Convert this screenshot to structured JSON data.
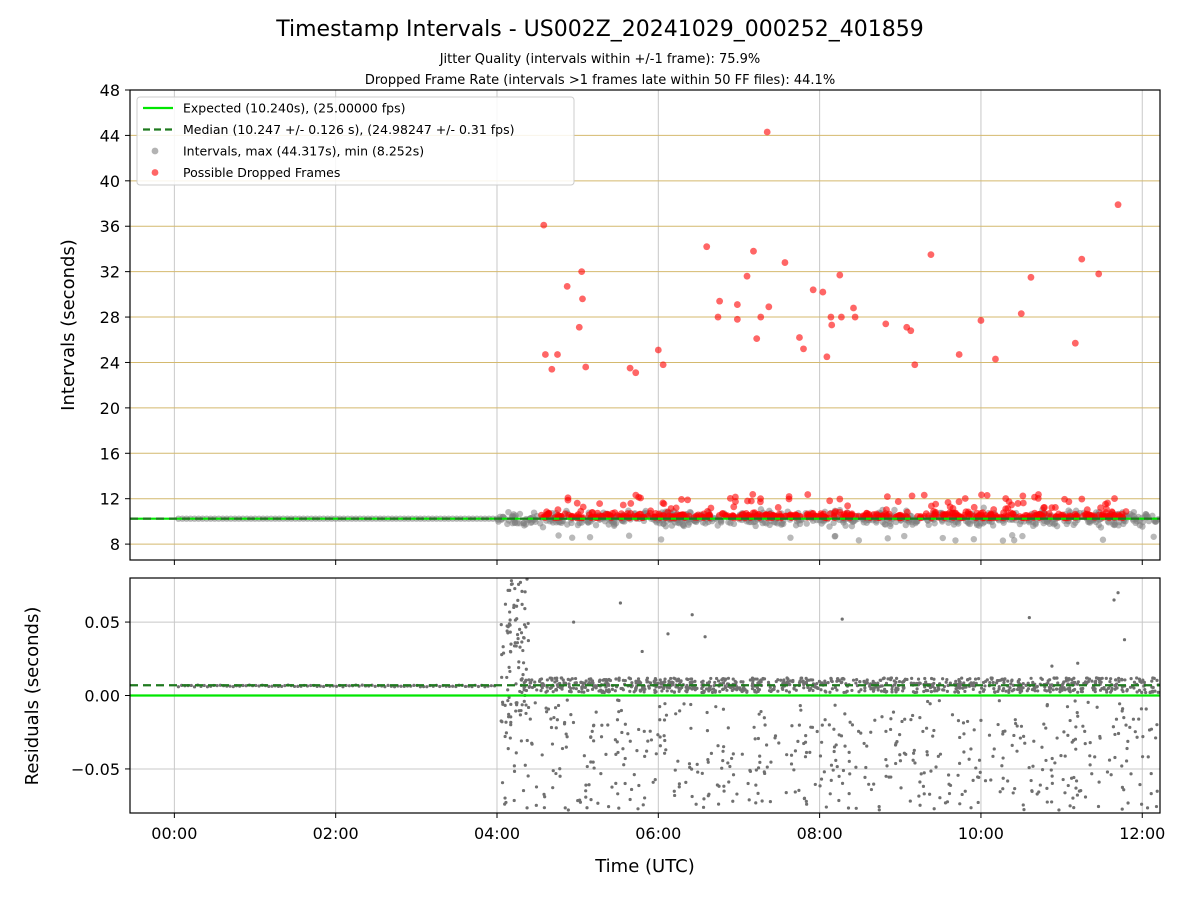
{
  "chart_data": {
    "type": "scatter",
    "title": "Timestamp Intervals - US002Z_20241029_000252_401859",
    "subtitle_1": "Jitter Quality (intervals within +/-1 frame): 75.9%",
    "subtitle_2": "Dropped Frame Rate (intervals >1 frames late within 50 FF files): 44.1%",
    "xlabel": "Time (UTC)",
    "x_tick_labels": [
      "00:00",
      "02:00",
      "04:00",
      "06:00",
      "08:00",
      "10:00",
      "12:00"
    ],
    "x_ticks_hours": [
      0,
      2,
      4,
      6,
      8,
      10,
      12
    ],
    "xlim_hours": [
      -0.55,
      12.22
    ],
    "top": {
      "ylabel": "Intervals (seconds)",
      "ylim": [
        6.6,
        48
      ],
      "yticks": [
        8,
        12,
        16,
        20,
        24,
        28,
        32,
        36,
        40,
        44,
        48
      ],
      "legend_position": "upper-left",
      "legend": [
        {
          "label": "Expected (10.240s), (25.00000 fps)",
          "style": "solid-line",
          "color": "#00e600"
        },
        {
          "label": "Median (10.247 +/- 0.126 s), (24.98247 +/- 0.31 fps)",
          "style": "dashed-line",
          "color": "#1f7a1f"
        },
        {
          "label": "Intervals, max (44.317s), min (8.252s)",
          "style": "dot",
          "color": "#808080"
        },
        {
          "label": "Possible Dropped Frames",
          "style": "dot",
          "color": "#ff0000"
        }
      ],
      "expected_value": 10.24,
      "median_value": 10.247,
      "dropped_frames_outliers": [
        [
          4.58,
          36.1
        ],
        [
          4.6,
          24.7
        ],
        [
          4.68,
          23.4
        ],
        [
          4.75,
          24.7
        ],
        [
          4.87,
          30.7
        ],
        [
          5.02,
          27.1
        ],
        [
          5.05,
          32.0
        ],
        [
          5.06,
          29.6
        ],
        [
          5.1,
          23.6
        ],
        [
          5.65,
          23.5
        ],
        [
          5.72,
          23.1
        ],
        [
          6.0,
          25.1
        ],
        [
          6.06,
          23.8
        ],
        [
          6.6,
          34.2
        ],
        [
          6.74,
          28.0
        ],
        [
          6.76,
          29.4
        ],
        [
          6.98,
          27.8
        ],
        [
          6.98,
          29.1
        ],
        [
          7.1,
          31.6
        ],
        [
          7.18,
          33.8
        ],
        [
          7.22,
          26.1
        ],
        [
          7.27,
          28.0
        ],
        [
          7.35,
          44.3
        ],
        [
          7.37,
          28.9
        ],
        [
          7.57,
          32.8
        ],
        [
          7.75,
          26.2
        ],
        [
          7.8,
          25.2
        ],
        [
          7.92,
          30.4
        ],
        [
          8.04,
          30.2
        ],
        [
          8.09,
          24.5
        ],
        [
          8.14,
          28.0
        ],
        [
          8.15,
          27.3
        ],
        [
          8.25,
          31.7
        ],
        [
          8.27,
          28.0
        ],
        [
          8.42,
          28.8
        ],
        [
          8.44,
          28.0
        ],
        [
          8.82,
          27.4
        ],
        [
          9.08,
          27.1
        ],
        [
          9.13,
          26.8
        ],
        [
          9.18,
          23.8
        ],
        [
          9.38,
          33.5
        ],
        [
          9.73,
          24.7
        ],
        [
          10.0,
          27.7
        ],
        [
          10.18,
          24.3
        ],
        [
          10.5,
          28.3
        ],
        [
          10.62,
          31.5
        ],
        [
          11.17,
          25.7
        ],
        [
          11.25,
          33.1
        ],
        [
          11.46,
          31.8
        ],
        [
          11.7,
          37.9
        ]
      ]
    },
    "bottom": {
      "ylabel": "Residuals (seconds)",
      "ylim": [
        -0.08,
        0.08
      ],
      "yticks": [
        -0.05,
        0.0,
        0.05
      ],
      "ytick_labels": [
        "−0.05",
        "0.00",
        "0.05"
      ],
      "expected_value": 0.0,
      "median_value": 0.007
    },
    "colors": {
      "expected": "#00e600",
      "median": "#1f7a1f",
      "intervals": "#808080",
      "dropped": "#ff0000",
      "horizontal_grid": "#d4b96e",
      "vertical_grid": "#c8c8c8"
    }
  }
}
